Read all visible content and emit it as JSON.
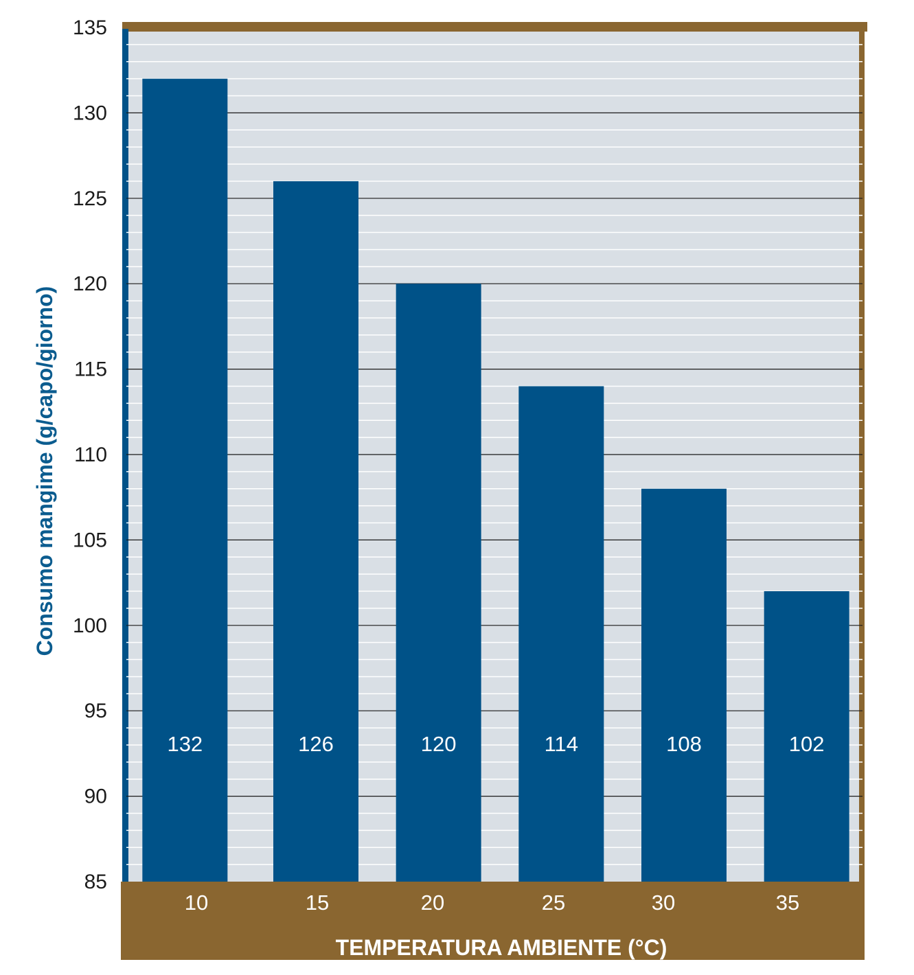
{
  "chart_data": {
    "type": "bar",
    "categories": [
      "10",
      "15",
      "20",
      "25",
      "30",
      "35"
    ],
    "values": [
      132,
      126,
      120,
      114,
      108,
      102
    ],
    "data_labels": [
      "132",
      "126",
      "120",
      "114",
      "108",
      "102"
    ],
    "xlabel": "TEMPERATURA AMBIENTE (°C)",
    "ylabel": "Consumo mangime (g/capo/giorno)",
    "ylim": [
      85,
      135
    ],
    "yticks": [
      "85",
      "90",
      "95",
      "100",
      "105",
      "110",
      "115",
      "120",
      "125",
      "130",
      "135"
    ],
    "grid": true
  },
  "colors": {
    "bar": "#005288",
    "frame": "#8a6630",
    "plot_background": "#d9dfe5",
    "minor_grid": "#ffffff",
    "major_grid": "#1a1a1a",
    "left_axis": "#005288",
    "ylabel_text": "#0b5c8f"
  }
}
